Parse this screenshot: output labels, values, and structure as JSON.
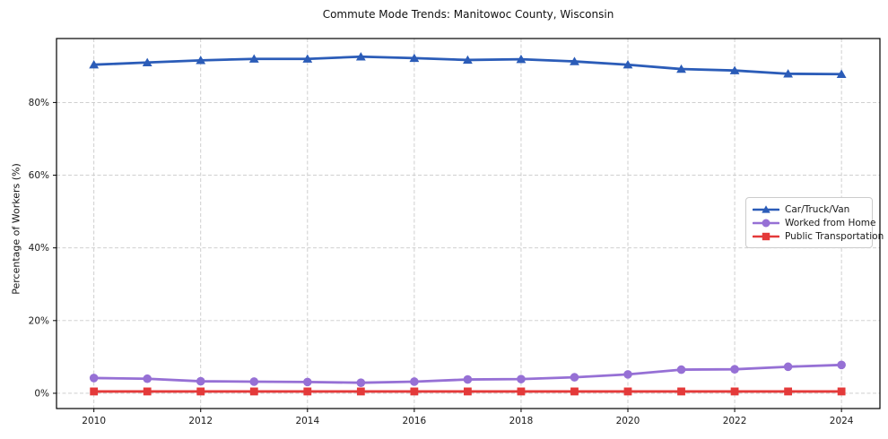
{
  "chart_data": {
    "type": "line",
    "title": "Commute Mode Trends: Manitowoc County, Wisconsin",
    "xlabel": "",
    "ylabel": "Percentage of Workers (%)",
    "x": [
      2010,
      2011,
      2012,
      2013,
      2014,
      2015,
      2016,
      2017,
      2018,
      2019,
      2020,
      2021,
      2022,
      2023,
      2024
    ],
    "x_ticks": [
      2010,
      2012,
      2014,
      2016,
      2018,
      2020,
      2022,
      2024
    ],
    "x_tick_labels": [
      "2010",
      "2012",
      "2014",
      "2016",
      "2018",
      "2020",
      "2022",
      "2024"
    ],
    "y_ticks": [
      0,
      20,
      40,
      60,
      80
    ],
    "y_tick_labels": [
      "0%",
      "20%",
      "40%",
      "60%",
      "80%"
    ],
    "xlim": [
      2009.3,
      2024.72
    ],
    "ylim": [
      -4.2,
      97.6
    ],
    "grid": true,
    "grid_style": "dashed",
    "legend_position": "center right",
    "series": [
      {
        "name": "Car/Truck/Van",
        "marker": "triangle",
        "color": "#2b5cb8",
        "values": [
          90.4,
          91.0,
          91.6,
          92.0,
          92.0,
          92.6,
          92.2,
          91.7,
          91.9,
          91.3,
          90.4,
          89.2,
          88.8,
          87.9,
          87.8
        ]
      },
      {
        "name": "Worked from Home",
        "marker": "circle",
        "color": "#9670d5",
        "values": [
          4.2,
          4.0,
          3.3,
          3.2,
          3.1,
          2.9,
          3.2,
          3.8,
          3.9,
          4.4,
          5.2,
          6.5,
          6.6,
          7.3,
          7.8
        ]
      },
      {
        "name": "Public Transportation",
        "marker": "square",
        "color": "#e43a3a",
        "values": [
          0.5,
          0.5,
          0.5,
          0.5,
          0.5,
          0.5,
          0.5,
          0.5,
          0.5,
          0.5,
          0.5,
          0.5,
          0.5,
          0.5,
          0.5
        ]
      }
    ]
  }
}
